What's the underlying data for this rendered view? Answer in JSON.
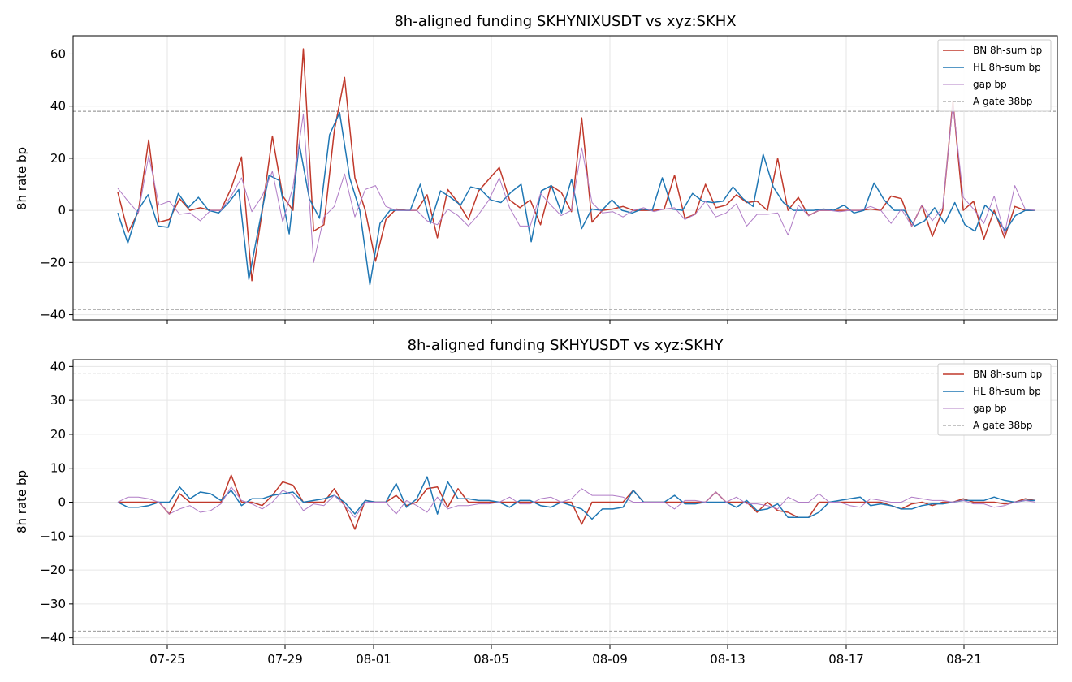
{
  "x_ticks": [
    "07-25",
    "07-29",
    "08-01",
    "08-05",
    "08-09",
    "08-13",
    "08-17",
    "08-21"
  ],
  "legend": [
    "BN 8h-sum bp",
    "HL 8h-sum bp",
    "gap bp",
    "A gate 38bp"
  ],
  "colors": {
    "bn": "#c0392b",
    "hl": "#1f77b4",
    "gap": "#b07cc6",
    "gate": "#888888",
    "grid": "#e6e6e6"
  },
  "chart_data": [
    {
      "type": "line",
      "title": "8h-aligned funding  SKHYNIXUSDT vs xyz:SKHX",
      "ylabel": "8h rate bp",
      "xlabel": "",
      "ylim": [
        -42,
        67
      ],
      "yticks": [
        -40,
        -20,
        0,
        20,
        40,
        60
      ],
      "grid": true,
      "legend_position": "top-right",
      "gate": 38,
      "series": [
        {
          "name": "BN 8h-sum bp",
          "values": [
            7,
            -8.5,
            -0.5,
            27,
            -4.5,
            -3.5,
            4.5,
            0,
            1,
            0,
            0,
            8.5,
            20.5,
            -27,
            -0.5,
            28.5,
            5.5,
            0,
            62,
            -8,
            -5.5,
            30.5,
            51,
            12.5,
            0,
            -19.5,
            -3.5,
            0.5,
            0,
            0,
            6,
            -10.5,
            8,
            3,
            -3.5,
            7.5,
            12,
            16.5,
            4,
            1,
            4,
            -5.5,
            9.5,
            7,
            -0.5,
            35.5,
            -4.5,
            0,
            0.5,
            1.5,
            0,
            0,
            0,
            0.5,
            13.5,
            -3,
            -1.5,
            10,
            1,
            2,
            6,
            3,
            3.5,
            0,
            20,
            0,
            5,
            -2,
            0,
            0,
            0,
            0,
            0,
            0.5,
            0,
            5.5,
            4.5,
            -6,
            2,
            -10,
            0,
            42,
            0,
            3.5,
            -11,
            0,
            -10.5,
            1.5,
            0,
            0
          ]
        },
        {
          "name": "HL 8h-sum bp",
          "values": [
            -1,
            -12.5,
            0,
            6,
            -6,
            -6.5,
            6.5,
            1,
            5,
            0,
            -1,
            3,
            8,
            -26.5,
            -6,
            13.5,
            11.5,
            -9,
            25.5,
            4.5,
            -3,
            29,
            37.5,
            12.5,
            0,
            -28.5,
            -5,
            0,
            0,
            0,
            10,
            -5,
            7.5,
            5,
            2,
            9,
            8,
            4,
            3,
            7,
            10,
            -12,
            7.5,
            9.5,
            -1,
            12,
            -7,
            0.5,
            0,
            4,
            0,
            -1,
            0.5,
            0,
            12.5,
            0.5,
            0,
            6.5,
            3.5,
            3,
            3.5,
            9,
            4.5,
            1.5,
            21.5,
            9,
            3,
            0,
            0,
            0,
            0.5,
            0,
            2,
            -1,
            0,
            10.5,
            4,
            0,
            0,
            -6,
            -4,
            1,
            -5,
            3,
            -5.5,
            -8,
            2,
            -1.5,
            -8,
            -2,
            0,
            0
          ]
        },
        {
          "name": "gap bp",
          "values": [
            8.5,
            3.5,
            -1,
            21,
            2,
            3.5,
            -1.5,
            -1,
            -4,
            0,
            0,
            5.5,
            12.5,
            -0.5,
            5.5,
            15,
            -4.5,
            9,
            37,
            -20,
            -2.5,
            1.5,
            14,
            -2.5,
            8,
            9.5,
            1.5,
            0,
            0,
            0,
            -4,
            -5.5,
            0.5,
            -2,
            -6,
            -1.5,
            4,
            12.5,
            1,
            -6,
            -6,
            6.5,
            2,
            -2,
            0,
            24,
            3,
            -1,
            -0.5,
            -2.5,
            0,
            1,
            -0.5,
            0.5,
            1,
            -3.5,
            -1.5,
            3.5,
            -2.5,
            -1,
            2.5,
            -6,
            -1.5,
            -1.5,
            -1,
            -9.5,
            2,
            -2,
            0,
            0,
            -0.5,
            0,
            0,
            1.5,
            0,
            -5,
            0.5,
            -6,
            2,
            -4,
            1,
            41,
            5,
            0.5,
            -5,
            5.5,
            -9,
            9.5,
            0.5,
            0
          ]
        }
      ]
    },
    {
      "type": "line",
      "title": "8h-aligned funding  SKHYUSDT vs xyz:SKHY",
      "ylabel": "8h rate bp",
      "xlabel": "",
      "ylim": [
        -42,
        42
      ],
      "yticks": [
        -40,
        -30,
        -20,
        -10,
        0,
        10,
        20,
        30,
        40
      ],
      "grid": true,
      "legend_position": "top-right",
      "gate": 38,
      "series": [
        {
          "name": "BN 8h-sum bp",
          "values": [
            0,
            0,
            0,
            0,
            0,
            -3.5,
            2.5,
            0,
            0,
            0,
            0,
            8,
            0,
            0,
            -1,
            2,
            6,
            5,
            0,
            0,
            0,
            4,
            -1,
            -8,
            0.5,
            0,
            0,
            2,
            -1,
            0,
            4,
            4.5,
            -1.5,
            4,
            0,
            0,
            0,
            0,
            0,
            0,
            0,
            0,
            0,
            0,
            0,
            -6.5,
            0,
            0,
            0,
            0,
            3.5,
            0,
            0,
            0,
            0,
            0,
            0,
            0,
            3,
            0,
            0,
            0,
            -3,
            0,
            -2.5,
            -3,
            -4.5,
            -4.5,
            0,
            0,
            0,
            0,
            0,
            0,
            0,
            -1,
            -2,
            -0.5,
            0,
            -1,
            0,
            0,
            1,
            0,
            0,
            0,
            -0.5,
            0,
            1,
            0.5
          ]
        },
        {
          "name": "HL 8h-sum bp",
          "values": [
            0,
            -1.5,
            -1.5,
            -1,
            0,
            0,
            4.5,
            1,
            3,
            2.5,
            0.5,
            3.5,
            -1,
            1,
            1,
            2,
            2.5,
            3,
            0,
            0.5,
            1,
            2,
            0,
            -3.5,
            0.5,
            0,
            0,
            5.5,
            -1.5,
            1,
            7.5,
            -3.5,
            6,
            1,
            1,
            0.5,
            0.5,
            0,
            -1.5,
            0.5,
            0.5,
            -1,
            -1.5,
            0,
            -1,
            -2,
            -5,
            -2,
            -2,
            -1.5,
            3.5,
            0,
            0,
            0,
            2,
            -0.5,
            -0.5,
            0,
            0,
            0,
            -1.5,
            0.5,
            -2.5,
            -2,
            -0.5,
            -4.5,
            -4.5,
            -4.5,
            -3,
            0,
            0.5,
            1,
            1.5,
            -1,
            -0.5,
            -1,
            -2,
            -2,
            -1,
            -0.5,
            -0.5,
            0,
            0.5,
            0.5,
            0.5,
            1.5,
            0.5,
            0,
            0.5,
            0.5
          ]
        },
        {
          "name": "gap bp",
          "values": [
            0,
            1.5,
            1.5,
            1,
            0,
            -3.5,
            -2,
            -1,
            -3,
            -2.5,
            -0.5,
            4.5,
            0.5,
            -0.5,
            -2,
            0,
            3.5,
            2,
            -2.5,
            -0.5,
            -1,
            2,
            -1,
            -4.5,
            0,
            0,
            0,
            -3.5,
            0.5,
            -1,
            -3,
            1.5,
            -2,
            -1,
            -1,
            -0.5,
            -0.5,
            0,
            1.5,
            -0.5,
            -0.5,
            1,
            1.5,
            0,
            1,
            4,
            2,
            2,
            2,
            1.5,
            0,
            0,
            0,
            0,
            -2,
            0.5,
            0.5,
            0,
            3,
            0,
            1.5,
            -0.5,
            -0.5,
            -1,
            -2,
            1.5,
            0,
            0,
            2.5,
            0,
            0,
            -1,
            -1.5,
            1,
            0.5,
            0,
            0,
            1.5,
            1,
            0.5,
            0.5,
            0,
            0.5,
            -0.5,
            -0.5,
            -1.5,
            -1,
            0,
            0.5,
            0
          ]
        }
      ]
    }
  ]
}
